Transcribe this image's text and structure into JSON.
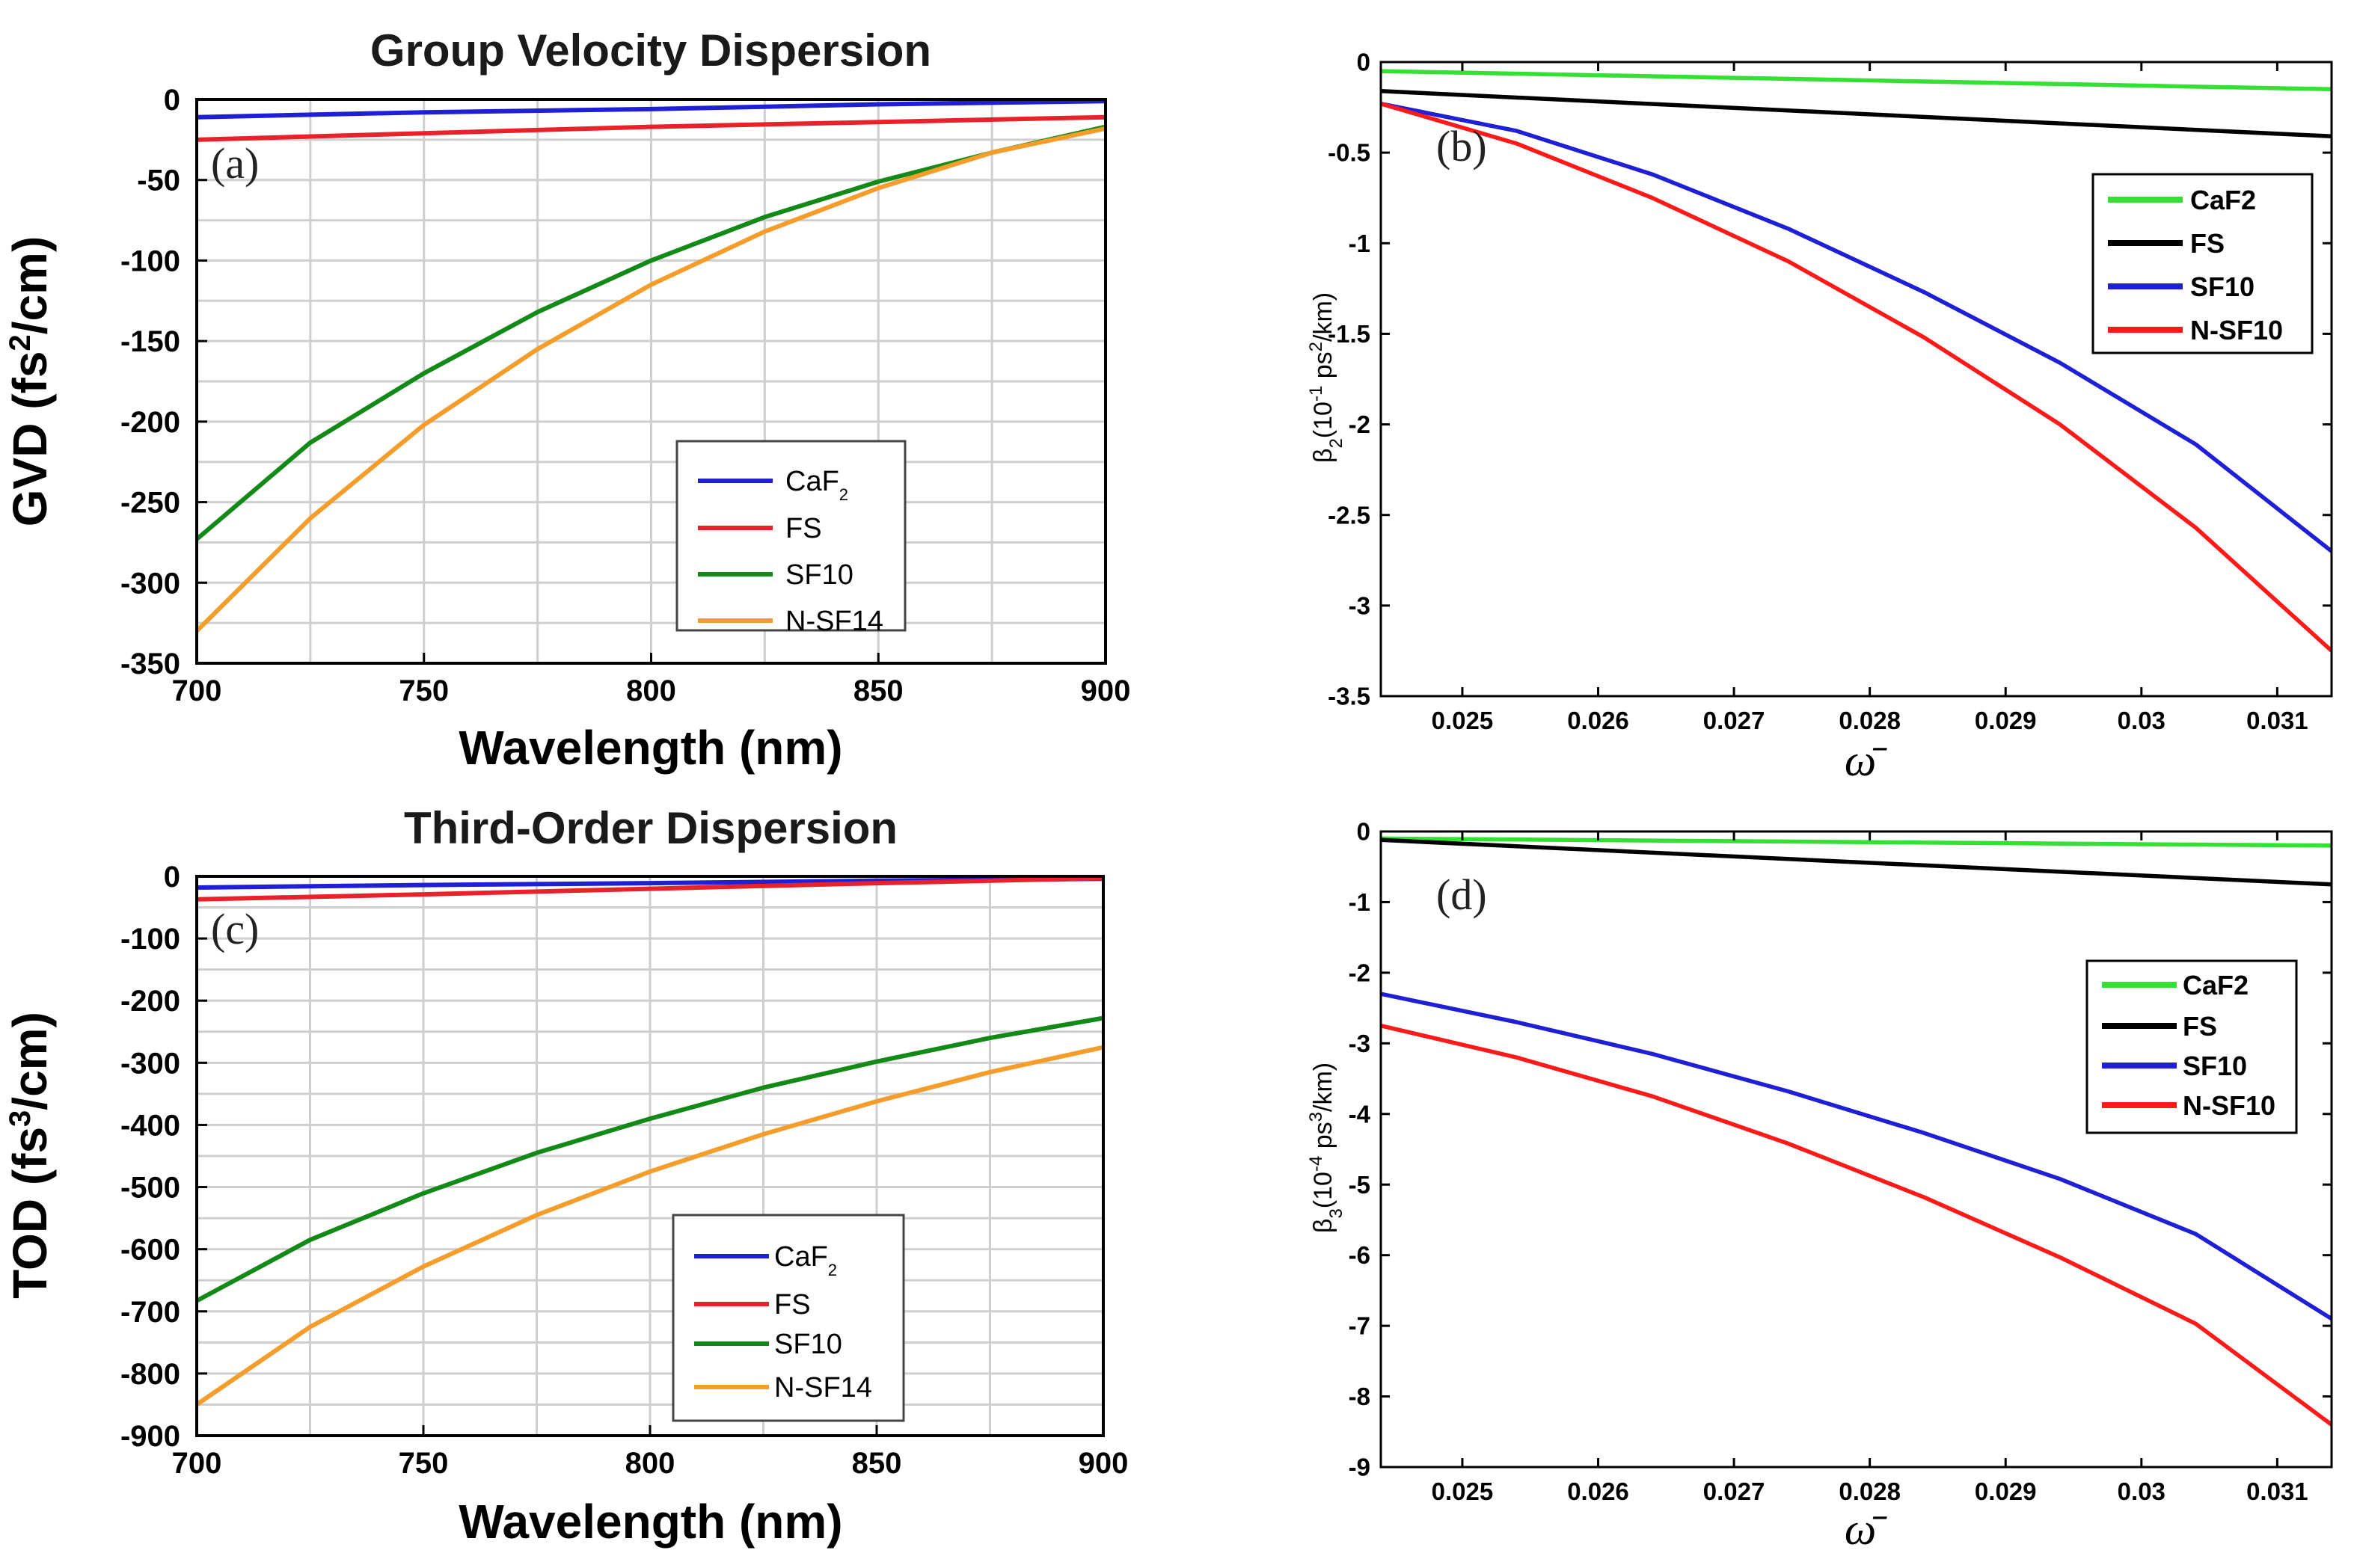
{
  "chart_data": [
    {
      "id": "a",
      "type": "line",
      "panel_label": "(a)",
      "title": "Group Velocity Dispersion",
      "xlabel": "Wavelength (nm)",
      "ylabel_main": "GVD (fs",
      "ylabel_sup": "2",
      "ylabel_end": "/cm)",
      "xlim": [
        700,
        900
      ],
      "ylim": [
        -350,
        0
      ],
      "xticks": [
        700,
        750,
        800,
        850,
        900
      ],
      "yticks": [
        0,
        -50,
        -100,
        -150,
        -200,
        -250,
        -300,
        -350
      ],
      "grid": true,
      "legend_position": "lower-right",
      "series": [
        {
          "name": "CaF",
          "name_sub": "2",
          "color": "#1f1fd6",
          "x": [
            700,
            750,
            800,
            850,
            900
          ],
          "y": [
            -11,
            -8,
            -6,
            -3,
            -1
          ]
        },
        {
          "name": "FS",
          "color": "#e8222a",
          "x": [
            700,
            750,
            800,
            850,
            900
          ],
          "y": [
            -25,
            -21,
            -17,
            -14,
            -11
          ]
        },
        {
          "name": "SF10",
          "color": "#138a18",
          "x": [
            700,
            725,
            750,
            775,
            800,
            825,
            850,
            875,
            900
          ],
          "y": [
            -273,
            -213,
            -170,
            -132,
            -100,
            -73,
            -51,
            -33,
            -17
          ]
        },
        {
          "name": "N-SF14",
          "color": "#f59d2a",
          "x": [
            700,
            725,
            750,
            775,
            800,
            825,
            850,
            875,
            900
          ],
          "y": [
            -330,
            -260,
            -202,
            -155,
            -115,
            -82,
            -55,
            -33,
            -18
          ]
        }
      ]
    },
    {
      "id": "b",
      "type": "line",
      "panel_label": "(b)",
      "xlabel": "ω̄",
      "ylabel_main": "β",
      "ylabel_sub": "2",
      "ylabel_mid": "(10",
      "ylabel_sup1": "-1",
      "ylabel_mid2": " ps",
      "ylabel_sup2": "2",
      "ylabel_end": "/km)",
      "xlim": [
        0.0244,
        0.0314
      ],
      "ylim": [
        -3.5,
        0
      ],
      "xticks": [
        0.025,
        0.026,
        0.027,
        0.028,
        0.029,
        0.03,
        0.031
      ],
      "xtick_labels": [
        "0.025",
        "0.026",
        "0.027",
        "0.028",
        "0.029",
        "0.03",
        "0.031"
      ],
      "yticks": [
        0,
        -0.5,
        -1,
        -1.5,
        -2,
        -2.5,
        -3,
        -3.5
      ],
      "ytick_labels": [
        "0",
        "-0.5",
        "-1",
        "-1.5",
        "-2",
        "-2.5",
        "-3",
        "-3.5"
      ],
      "grid": false,
      "legend_position": "top-right",
      "series": [
        {
          "name": "CaF2",
          "color": "#33e033",
          "x": [
            0.0244,
            0.0314
          ],
          "y": [
            -0.05,
            -0.15
          ]
        },
        {
          "name": "FS",
          "color": "#000000",
          "x": [
            0.0244,
            0.0314
          ],
          "y": [
            -0.16,
            -0.41
          ]
        },
        {
          "name": "SF10",
          "color": "#1f1fd6",
          "x": [
            0.0244,
            0.0254,
            0.0264,
            0.0274,
            0.0284,
            0.0294,
            0.0304,
            0.0314
          ],
          "y": [
            -0.23,
            -0.38,
            -0.62,
            -0.92,
            -1.27,
            -1.66,
            -2.11,
            -2.7
          ]
        },
        {
          "name": "N-SF10",
          "color": "#ff1a1a",
          "x": [
            0.0244,
            0.0254,
            0.0264,
            0.0274,
            0.0284,
            0.0294,
            0.0304,
            0.0314
          ],
          "y": [
            -0.23,
            -0.45,
            -0.75,
            -1.1,
            -1.52,
            -2.0,
            -2.57,
            -3.25
          ]
        }
      ]
    },
    {
      "id": "c",
      "type": "line",
      "panel_label": "(c)",
      "title": "Third-Order Dispersion",
      "xlabel": "Wavelength (nm)",
      "ylabel_main": "TOD (fs",
      "ylabel_sup": "3",
      "ylabel_end": "/cm)",
      "xlim": [
        700,
        900
      ],
      "ylim": [
        -900,
        0
      ],
      "xticks": [
        700,
        750,
        800,
        850,
        900
      ],
      "yticks": [
        0,
        -100,
        -200,
        -300,
        -400,
        -500,
        -600,
        -700,
        -800,
        -900
      ],
      "grid": true,
      "legend_position": "lower-right",
      "series": [
        {
          "name": "CaF",
          "name_sub": "2",
          "color": "#1f1fd6",
          "x": [
            700,
            750,
            800,
            850,
            900
          ],
          "y": [
            -18,
            -14,
            -11,
            -7,
            -4
          ]
        },
        {
          "name": "FS",
          "color": "#e8222a",
          "x": [
            700,
            750,
            800,
            850,
            900
          ],
          "y": [
            -37,
            -29,
            -20,
            -11,
            -3
          ]
        },
        {
          "name": "SF10",
          "color": "#138a18",
          "x": [
            700,
            725,
            750,
            775,
            800,
            825,
            850,
            875,
            900
          ],
          "y": [
            -683,
            -585,
            -510,
            -445,
            -390,
            -340,
            -298,
            -260,
            -228
          ]
        },
        {
          "name": "N-SF14",
          "color": "#f59d2a",
          "x": [
            700,
            725,
            750,
            775,
            800,
            825,
            850,
            875,
            900
          ],
          "y": [
            -850,
            -725,
            -628,
            -545,
            -475,
            -415,
            -362,
            -315,
            -275
          ]
        }
      ]
    },
    {
      "id": "d",
      "type": "line",
      "panel_label": "(d)",
      "xlabel": "ω̄",
      "ylabel_main": "β",
      "ylabel_sub": "3",
      "ylabel_mid": "(10",
      "ylabel_sup1": "-4",
      "ylabel_mid2": " ps",
      "ylabel_sup2": "3",
      "ylabel_end": "/km)",
      "xlim": [
        0.0244,
        0.0314
      ],
      "ylim": [
        -9,
        0
      ],
      "xticks": [
        0.025,
        0.026,
        0.027,
        0.028,
        0.029,
        0.03,
        0.031
      ],
      "xtick_labels": [
        "0.025",
        "0.026",
        "0.027",
        "0.028",
        "0.029",
        "0.03",
        "0.031"
      ],
      "yticks": [
        0,
        -1,
        -2,
        -3,
        -4,
        -5,
        -6,
        -7,
        -8,
        -9
      ],
      "grid": false,
      "legend_position": "top-right",
      "series": [
        {
          "name": "CaF2",
          "color": "#33e033",
          "x": [
            0.0244,
            0.0314
          ],
          "y": [
            -0.1,
            -0.2
          ]
        },
        {
          "name": "FS",
          "color": "#000000",
          "x": [
            0.0244,
            0.0314
          ],
          "y": [
            -0.12,
            -0.75
          ]
        },
        {
          "name": "SF10",
          "color": "#1f1fd6",
          "x": [
            0.0244,
            0.0254,
            0.0264,
            0.0274,
            0.0284,
            0.0294,
            0.0304,
            0.0314
          ],
          "y": [
            -2.3,
            -2.7,
            -3.15,
            -3.68,
            -4.27,
            -4.92,
            -5.7,
            -6.9
          ]
        },
        {
          "name": "N-SF10",
          "color": "#ff1a1a",
          "x": [
            0.0244,
            0.0254,
            0.0264,
            0.0274,
            0.0284,
            0.0294,
            0.0304,
            0.0314
          ],
          "y": [
            -2.75,
            -3.2,
            -3.75,
            -4.42,
            -5.18,
            -6.03,
            -6.97,
            -8.4
          ]
        }
      ]
    }
  ]
}
